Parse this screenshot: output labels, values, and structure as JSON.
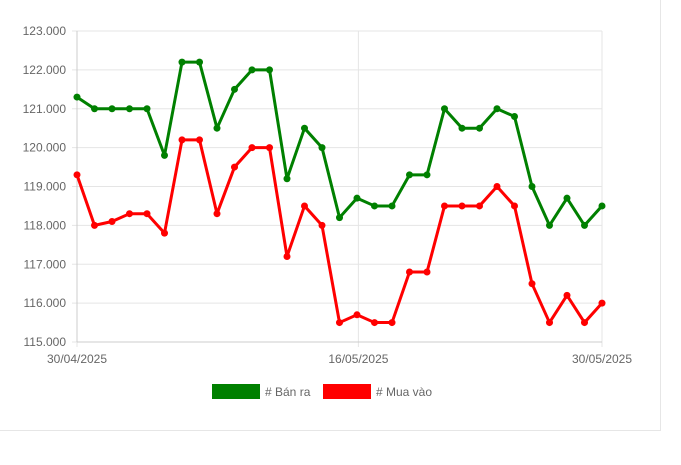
{
  "chart_data": {
    "type": "line",
    "title": "",
    "xlabel": "",
    "ylabel": "",
    "ylim": [
      115000,
      123000
    ],
    "yticks": [
      "115.000",
      "116.000",
      "117.000",
      "118.000",
      "119.000",
      "120.000",
      "121.000",
      "122.000",
      "123.000"
    ],
    "x_tick_labels": [
      "30/04/2025",
      "16/05/2025",
      "30/05/2025"
    ],
    "grid": true,
    "legend_position": "bottom",
    "series": [
      {
        "name": "# Bán ra",
        "color": "#008000",
        "values": [
          121300,
          121000,
          121000,
          121000,
          121000,
          119800,
          122200,
          122200,
          120500,
          121500,
          122000,
          122000,
          119200,
          120500,
          120000,
          118200,
          118700,
          118500,
          118500,
          119300,
          119300,
          121000,
          120500,
          120500,
          121000,
          120800,
          119000,
          118000,
          118700,
          118000,
          118500
        ]
      },
      {
        "name": "# Mua vào",
        "color": "#ff0000",
        "values": [
          119300,
          118000,
          118100,
          118300,
          118300,
          117800,
          120200,
          120200,
          118300,
          119500,
          120000,
          120000,
          117200,
          118500,
          118000,
          115500,
          115700,
          115500,
          115500,
          116800,
          116800,
          118500,
          118500,
          118500,
          119000,
          118500,
          116500,
          115500,
          116200,
          115500,
          116000
        ]
      }
    ]
  }
}
